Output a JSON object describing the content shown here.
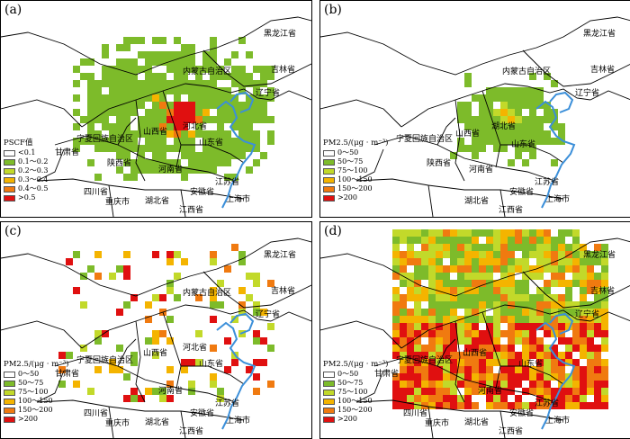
{
  "panels": [
    {
      "id": "a",
      "label": "(a)",
      "legend": {
        "title": "PSCF值",
        "items": [
          {
            "label": "<0.1",
            "color": "#ffffff"
          },
          {
            "label": "0.1～0.2",
            "color": "#7dbb2a"
          },
          {
            "label": "0.2～0.3",
            "color": "#c2d92a"
          },
          {
            "label": "0.3～0.4",
            "color": "#f4b400"
          },
          {
            "label": "0.4～0.5",
            "color": "#f07a10"
          },
          {
            "label": ">0.5",
            "color": "#e01010"
          }
        ]
      },
      "places": [
        "黑龙江省",
        "吉林省",
        "内蒙古自治区",
        "辽宁省",
        "甘肃省",
        "宁夏回族自治区",
        "山西省",
        "河北省",
        "山东省",
        "陕西省",
        "河南省",
        "四川省",
        "湖北省",
        "安徽省",
        "江苏省",
        "重庆市",
        "江西省",
        "上海市"
      ]
    },
    {
      "id": "b",
      "label": "(b)",
      "legend": {
        "title": "PM2.5/(μg · m⁻³)",
        "items": [
          {
            "label": "0～50",
            "color": "#ffffff"
          },
          {
            "label": "50～75",
            "color": "#7dbb2a"
          },
          {
            "label": "75～100",
            "color": "#c2d92a"
          },
          {
            "label": "100～150",
            "color": "#f4b400"
          },
          {
            "label": "150～200",
            "color": "#f07a10"
          },
          {
            "label": ">200",
            "color": "#e01010"
          }
        ]
      },
      "places": [
        "黑龙江省",
        "吉林省",
        "内蒙古自治区",
        "辽宁省",
        "宁夏回族自治区",
        "山西省",
        "湖北省",
        "山东省",
        "陕西省",
        "河南省",
        "湖北省",
        "安徽省",
        "江苏省",
        "江西省",
        "上海市"
      ]
    },
    {
      "id": "c",
      "label": "(c)",
      "legend": {
        "title": "PM2.5/(μg · m⁻³)",
        "items": [
          {
            "label": "0～50",
            "color": "#ffffff"
          },
          {
            "label": "50～75",
            "color": "#7dbb2a"
          },
          {
            "label": "75～100",
            "color": "#c2d92a"
          },
          {
            "label": "100～150",
            "color": "#f4b400"
          },
          {
            "label": "150～200",
            "color": "#f07a10"
          },
          {
            "label": ">200",
            "color": "#e01010"
          }
        ]
      },
      "places": [
        "黑龙江省",
        "吉林省",
        "内蒙古自治区",
        "辽宁省",
        "甘肃省",
        "宁夏回族自治区",
        "山西省",
        "河北省",
        "山东省",
        "河南省",
        "四川省",
        "湖北省",
        "安徽省",
        "江苏省",
        "重庆市",
        "江西省",
        "上海市"
      ]
    },
    {
      "id": "d",
      "label": "(d)",
      "legend": {
        "title": "PM2.5/(μg · m⁻³)",
        "items": [
          {
            "label": "0～50",
            "color": "#ffffff"
          },
          {
            "label": "50～75",
            "color": "#7dbb2a"
          },
          {
            "label": "75～100",
            "color": "#c2d92a"
          },
          {
            "label": "100～150",
            "color": "#f4b400"
          },
          {
            "label": "150～200",
            "color": "#f07a10"
          },
          {
            "label": ">200",
            "color": "#e01010"
          }
        ]
      },
      "places": [
        "黑龙江省",
        "吉林省",
        "辽宁省",
        "甘肃省",
        "宁夏回族自治区",
        "山西省",
        "山东省",
        "河南省",
        "四川省",
        "湖北省",
        "安徽省",
        "江苏省",
        "重庆市",
        "江西省",
        "上海市"
      ]
    }
  ]
}
